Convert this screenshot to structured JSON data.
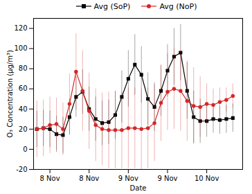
{
  "chart_data": {
    "type": "line",
    "x_label": "Date",
    "y_label": "O₃ Concentration (μg/m³)",
    "x": [
      -4,
      -2,
      0,
      2,
      4,
      6,
      8,
      10,
      12,
      14,
      16,
      18,
      20,
      22,
      24,
      26,
      28,
      30,
      32,
      34,
      36,
      38,
      40,
      42,
      44,
      46,
      48,
      50,
      52,
      54,
      56
    ],
    "xlim": [
      -5,
      59
    ],
    "xticks": [
      {
        "value": 0,
        "label": "8 Nov"
      },
      {
        "value": 12,
        "label": "8 Nov"
      },
      {
        "value": 24,
        "label": "9 Nov"
      },
      {
        "value": 36,
        "label": "9 Nov"
      },
      {
        "value": 48,
        "label": "10 Nov"
      }
    ],
    "ylim": [
      -20,
      130
    ],
    "yticks": [
      -20,
      0,
      20,
      40,
      60,
      80,
      100,
      120
    ],
    "legend": "top",
    "series": [
      {
        "name": "Avg (SoP)",
        "color": "#000000",
        "marker": "square",
        "line_style": "solid",
        "values": [
          20,
          21,
          20,
          15,
          14,
          32,
          52,
          57,
          40,
          30,
          26,
          27,
          34,
          52,
          70,
          84,
          74,
          50,
          42,
          58,
          78,
          92,
          96,
          58,
          32,
          28,
          28,
          30,
          29,
          30,
          31
        ],
        "errors": [
          18,
          18,
          18,
          18,
          18,
          18,
          20,
          22,
          22,
          22,
          22,
          22,
          24,
          26,
          28,
          30,
          28,
          26,
          24,
          25,
          26,
          28,
          28,
          28,
          26,
          22,
          16,
          14,
          14,
          14,
          14
        ]
      },
      {
        "name": "Avg (NoP)",
        "color": "#d62728",
        "marker": "circle",
        "line_style": "solid",
        "values": [
          20,
          21,
          24,
          25,
          20,
          45,
          77,
          58,
          38,
          24,
          20,
          19,
          19,
          19,
          21,
          21,
          20,
          21,
          26,
          46,
          57,
          60,
          58,
          48,
          43,
          42,
          45,
          44,
          47,
          49,
          53
        ],
        "errors": [
          28,
          28,
          28,
          26,
          26,
          30,
          38,
          40,
          38,
          36,
          36,
          38,
          38,
          38,
          40,
          40,
          40,
          40,
          38,
          38,
          38,
          40,
          40,
          40,
          38,
          30,
          20,
          16,
          14,
          12,
          12
        ]
      }
    ]
  }
}
